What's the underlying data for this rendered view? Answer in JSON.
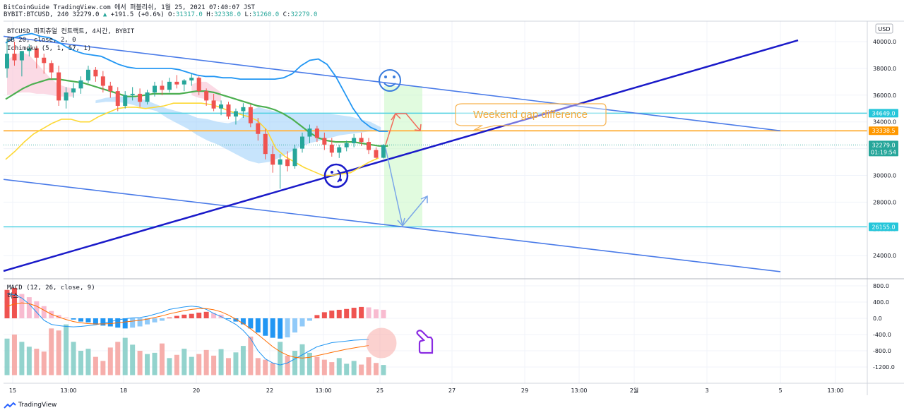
{
  "header": {
    "line1": "BitCoinGuide TradingView.com 에서 퍼블리쉬, 1월 25, 2021 07:40:07 JST",
    "symbol": "BYBIT:BTCUSD, 240",
    "last": "32279.0",
    "change": "+191.5 (+0.6%)",
    "o_label": "O:",
    "o": "31317.0",
    "h_label": "H:",
    "h": "32338.0",
    "l_label": "L:",
    "l": "31260.0",
    "c_label": "C:",
    "c": "32279.0"
  },
  "legend": {
    "l1": "BTCUSD 파피츄얼 컨트랙트, 4시간, BYBIT",
    "l2": "BB 20, close, 2, 0",
    "l3": "Ichimoku (5, 1, 57, 1)",
    "macd": "MACD (12, 26, close, 9)",
    "macd_sub": "히스"
  },
  "currency_button": "USD",
  "brand": "TradingView",
  "annotation": "Weekend gap difference",
  "colors": {
    "bull": "#26a69a",
    "bear": "#ef5350",
    "bb_band": "#2196f3",
    "bb_mid": "#4caf50",
    "kijun": "#fdd835",
    "cloud": "#90caf9",
    "channel": "#4a7be8",
    "trend": "#1a1ac9",
    "level_cyan": "#4dd0e1",
    "level_orange": "#ffb74d",
    "macd_line": "#2196f3",
    "signal_line": "#ff6d00"
  },
  "chart_data": {
    "type": "candlestick",
    "price_axis": {
      "min": 22200,
      "max": 41000,
      "ticks": [
        24000,
        26000,
        28000,
        30000,
        32000,
        34000,
        36000,
        38000,
        40000
      ]
    },
    "price_tags": [
      {
        "label": "34649.0",
        "value": 34649,
        "color": "#26c6da"
      },
      {
        "label": "33338.5",
        "value": 33338.5,
        "color": "#ff9800"
      },
      {
        "label": "32279.0",
        "value": 32279,
        "color": "#26a69a"
      },
      {
        "label": "01:19:54",
        "value": 31750,
        "color": "#26a69a"
      },
      {
        "label": "26155.0",
        "value": 26155,
        "color": "#26c6da"
      }
    ],
    "x_ticks": [
      "15",
      "13:00",
      "18",
      "20",
      "22",
      "13:00",
      "25",
      "27",
      "29",
      "13:00",
      "2월",
      "3",
      "5",
      "13:00"
    ],
    "candles": [
      [
        38000,
        40200,
        37300,
        39100
      ],
      [
        39100,
        40000,
        38200,
        38600
      ],
      [
        38600,
        39300,
        37400,
        39300
      ],
      [
        39300,
        39800,
        38900,
        39500
      ],
      [
        39500,
        39700,
        38000,
        38800
      ],
      [
        38800,
        39100,
        37600,
        38400
      ],
      [
        38400,
        38600,
        37200,
        37700
      ],
      [
        37700,
        38200,
        35200,
        35600
      ],
      [
        35600,
        36600,
        35000,
        36200
      ],
      [
        36200,
        36900,
        35800,
        36500
      ],
      [
        36500,
        37400,
        36100,
        37100
      ],
      [
        37100,
        38200,
        36900,
        37900
      ],
      [
        37900,
        38100,
        37000,
        37400
      ],
      [
        37400,
        37800,
        36200,
        36700
      ],
      [
        36700,
        37000,
        35800,
        36300
      ],
      [
        36300,
        36600,
        34800,
        35200
      ],
      [
        35200,
        36300,
        35000,
        36000
      ],
      [
        36000,
        36600,
        35600,
        36100
      ],
      [
        36100,
        36500,
        35100,
        35500
      ],
      [
        35500,
        36400,
        35300,
        36200
      ],
      [
        36200,
        37000,
        35900,
        36700
      ],
      [
        36700,
        37100,
        36000,
        36400
      ],
      [
        36400,
        37300,
        36200,
        37000
      ],
      [
        37000,
        37500,
        36500,
        36800
      ],
      [
        36800,
        37200,
        36300,
        37100
      ],
      [
        37100,
        37600,
        36700,
        37300
      ],
      [
        37300,
        37400,
        36000,
        36300
      ],
      [
        36300,
        36500,
        35200,
        35600
      ],
      [
        35600,
        36100,
        34800,
        35000
      ],
      [
        35000,
        35600,
        34500,
        35300
      ],
      [
        35300,
        35500,
        34200,
        34400
      ],
      [
        34400,
        35000,
        33800,
        34800
      ],
      [
        34800,
        35400,
        34300,
        35100
      ],
      [
        35100,
        35300,
        33600,
        33900
      ],
      [
        33900,
        34300,
        32600,
        33100
      ],
      [
        33100,
        33500,
        31200,
        31600
      ],
      [
        31600,
        32200,
        30200,
        30800
      ],
      [
        30800,
        31600,
        29000,
        31200
      ],
      [
        31200,
        31800,
        30300,
        30700
      ],
      [
        30700,
        32300,
        30500,
        32000
      ],
      [
        32000,
        33200,
        31700,
        32900
      ],
      [
        32900,
        33800,
        32400,
        33500
      ],
      [
        33500,
        33700,
        32500,
        32800
      ],
      [
        32800,
        33200,
        31900,
        32300
      ],
      [
        32300,
        32800,
        31400,
        31700
      ],
      [
        31700,
        32300,
        31300,
        32100
      ],
      [
        32100,
        32600,
        31800,
        32400
      ],
      [
        32400,
        33100,
        32100,
        32800
      ],
      [
        32800,
        33200,
        32200,
        32500
      ],
      [
        32500,
        32800,
        31600,
        31900
      ],
      [
        31900,
        32100,
        31260,
        31317
      ],
      [
        31317,
        32338,
        31260,
        32279
      ]
    ],
    "bb_upper": [
      39900,
      40300,
      40500,
      40600,
      40400,
      40300,
      40000,
      39600,
      39300,
      39100,
      39000,
      38900,
      38600,
      38300,
      38100,
      38000,
      38000,
      38000,
      38000,
      38000,
      37900,
      37700,
      37500,
      37400,
      37400,
      37300,
      37300,
      37200,
      37200,
      37200,
      37200,
      37200,
      37300,
      37600,
      38200,
      38600,
      38700,
      38300,
      37400,
      36200,
      35000,
      34100,
      33600,
      33300,
      33300
    ],
    "bb_basis": [
      35700,
      36100,
      36500,
      36800,
      37000,
      37200,
      37200,
      37100,
      37000,
      36900,
      36700,
      36500,
      36300,
      36100,
      35900,
      35900,
      36000,
      36100,
      36100,
      36100,
      36100,
      36200,
      36300,
      36300,
      36200,
      36000,
      35800,
      35600,
      35400,
      35200,
      35100,
      34900,
      34600,
      34200,
      33700,
      33200,
      32800,
      32600,
      32500,
      32500,
      32500,
      32400,
      32300,
      32200,
      32200
    ],
    "bb_lower": [
      31200,
      31800,
      32500,
      33100,
      33500,
      33900,
      34200,
      34200,
      34000,
      34000,
      34400,
      34700,
      35000,
      35100,
      35100,
      35000,
      35100,
      35200,
      35400,
      35400,
      35400,
      35400,
      35300,
      35100,
      34800,
      34600,
      34400,
      34100,
      33400,
      32000,
      31400,
      31000,
      30600,
      30300,
      30000,
      30000,
      30100,
      30200,
      30600,
      31000,
      31300
    ],
    "macd_axis": {
      "min": -1500,
      "max": 900,
      "ticks": [
        800,
        400,
        0,
        -400,
        -800,
        -1200
      ]
    },
    "macd_hist": [
      700,
      750,
      600,
      520,
      420,
      300,
      180,
      80,
      20,
      -30,
      -80,
      -100,
      -150,
      -180,
      -200,
      -230,
      -250,
      -230,
      -200,
      -150,
      -100,
      -60,
      20,
      60,
      90,
      110,
      140,
      160,
      130,
      90,
      -20,
      -80,
      -150,
      -250,
      -350,
      -430,
      -480,
      -500,
      -470,
      -350,
      -200,
      -60,
      80,
      150,
      190,
      210,
      230,
      260,
      280,
      270,
      220,
      210
    ],
    "macd_line": [
      600,
      580,
      500,
      350,
      150,
      -50,
      -150,
      -180,
      -200,
      -210,
      -200,
      -180,
      -160,
      -120,
      -80,
      -40,
      -10,
      10,
      20,
      50,
      100,
      150,
      220,
      250,
      280,
      300,
      280,
      220,
      120,
      40,
      -50,
      -150,
      -300,
      -500,
      -800,
      -1000,
      -1100,
      -1150,
      -1100,
      -1000,
      -900,
      -800,
      -700,
      -650,
      -600,
      -580,
      -560,
      -540,
      -530,
      -520
    ],
    "signal_line": [
      300,
      350,
      380,
      360,
      300,
      200,
      100,
      30,
      -30,
      -80,
      -110,
      -130,
      -140,
      -140,
      -130,
      -110,
      -90,
      -70,
      -50,
      -20,
      20,
      60,
      110,
      150,
      190,
      220,
      240,
      240,
      210,
      160,
      80,
      -20,
      -130,
      -260,
      -400,
      -550,
      -700,
      -820,
      -910,
      -960,
      -980,
      -960,
      -920,
      -880,
      -840,
      -800,
      -760,
      -730,
      -700,
      -670
    ]
  }
}
